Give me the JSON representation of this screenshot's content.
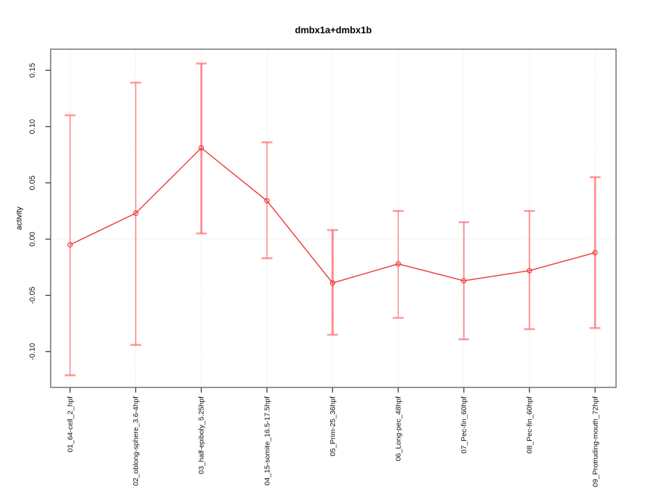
{
  "chart_data": {
    "type": "line",
    "title": "dmbx1a+dmbx1b",
    "xlabel": "",
    "ylabel": "activity",
    "categories": [
      "01_64-cell_2_hpf",
      "02_oblong-sphere_3.6-4hpf",
      "03_half-epiboly_5.25hpf",
      "04_15-somite_16.5-17.5hpf",
      "05_Prim-25_36hpf",
      "06_Long-pec_48hpf",
      "07_Pec-fin_60hpf",
      "08_Pec-fin_60hpf",
      "09_Protruding-mouth_72hpf"
    ],
    "series": [
      {
        "name": "activity",
        "values": [
          -0.005,
          0.023,
          0.081,
          0.034,
          -0.039,
          -0.022,
          -0.037,
          -0.028,
          -0.012
        ],
        "err_high": [
          0.11,
          0.139,
          0.156,
          0.086,
          0.008,
          0.025,
          0.015,
          0.025,
          0.055
        ],
        "err_low": [
          -0.121,
          -0.094,
          0.005,
          -0.017,
          -0.085,
          -0.07,
          -0.089,
          -0.08,
          -0.079
        ],
        "bar_weights": [
          1.6,
          1.8,
          3.0,
          1.6,
          3.2,
          1.6,
          2.0,
          2.0,
          2.8
        ]
      }
    ],
    "yticks": [
      0.15,
      0.1,
      0.05,
      0.0,
      -0.05,
      -0.1
    ],
    "ytick_labels": [
      "0.15",
      "0.10",
      "0.05",
      "0.00",
      "-0.05",
      "-0.10"
    ],
    "ylim": [
      -0.132,
      0.169
    ],
    "grid": "dotted vertical line at each category; dotted horizontal line at 0",
    "legend": "none",
    "colors": {
      "line": "#ee3b3b",
      "marker": "#ee3b3b",
      "error_bar": "rgba(255,70,70,0.60)",
      "error_cap": "rgba(255,99,99,0.62)",
      "grid": "#d8d8d8",
      "box": "#6e6e6e",
      "tick": "#333333",
      "text": "#111111"
    }
  }
}
